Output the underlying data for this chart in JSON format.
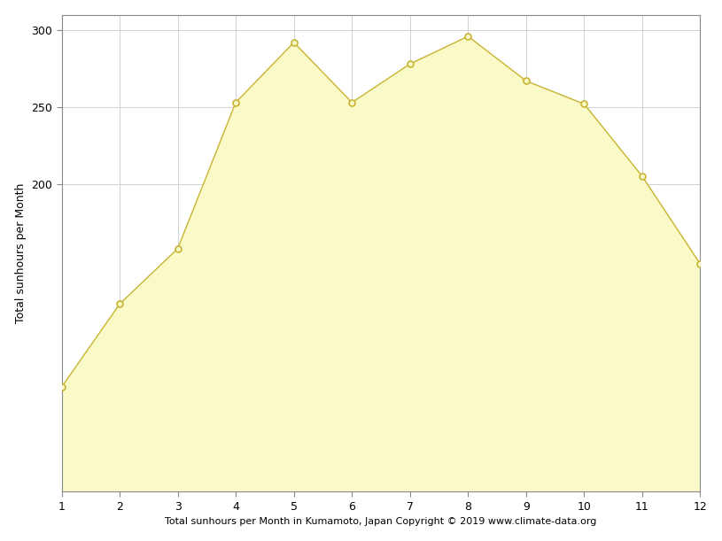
{
  "months": [
    1,
    2,
    3,
    4,
    5,
    6,
    7,
    8,
    9,
    10,
    11,
    12
  ],
  "sunhours": [
    68,
    122,
    158,
    253,
    292,
    253,
    278,
    296,
    267,
    252,
    205,
    148
  ],
  "xlabel": "Total sunhours per Month in Kumamoto, Japan Copyright © 2019 www.climate-data.org",
  "ylabel": "Total sunhours per Month",
  "ylim_bottom": 0,
  "ylim_top": 310,
  "xlim_left": 1,
  "xlim_right": 12,
  "yticks": [
    200,
    250,
    300
  ],
  "fill_color": "#FAFAC8",
  "line_color": "#C8B432",
  "marker_face_color": "#FAFAC8",
  "marker_edge_color": "#C8B432",
  "background_color": "#ffffff",
  "grid_color": "#cccccc",
  "ylabel_fontsize": 9,
  "xlabel_fontsize": 8,
  "tick_fontsize": 9,
  "spine_color": "#888888",
  "line_width": 1.0,
  "marker_size": 5,
  "marker_edge_width": 1.2
}
